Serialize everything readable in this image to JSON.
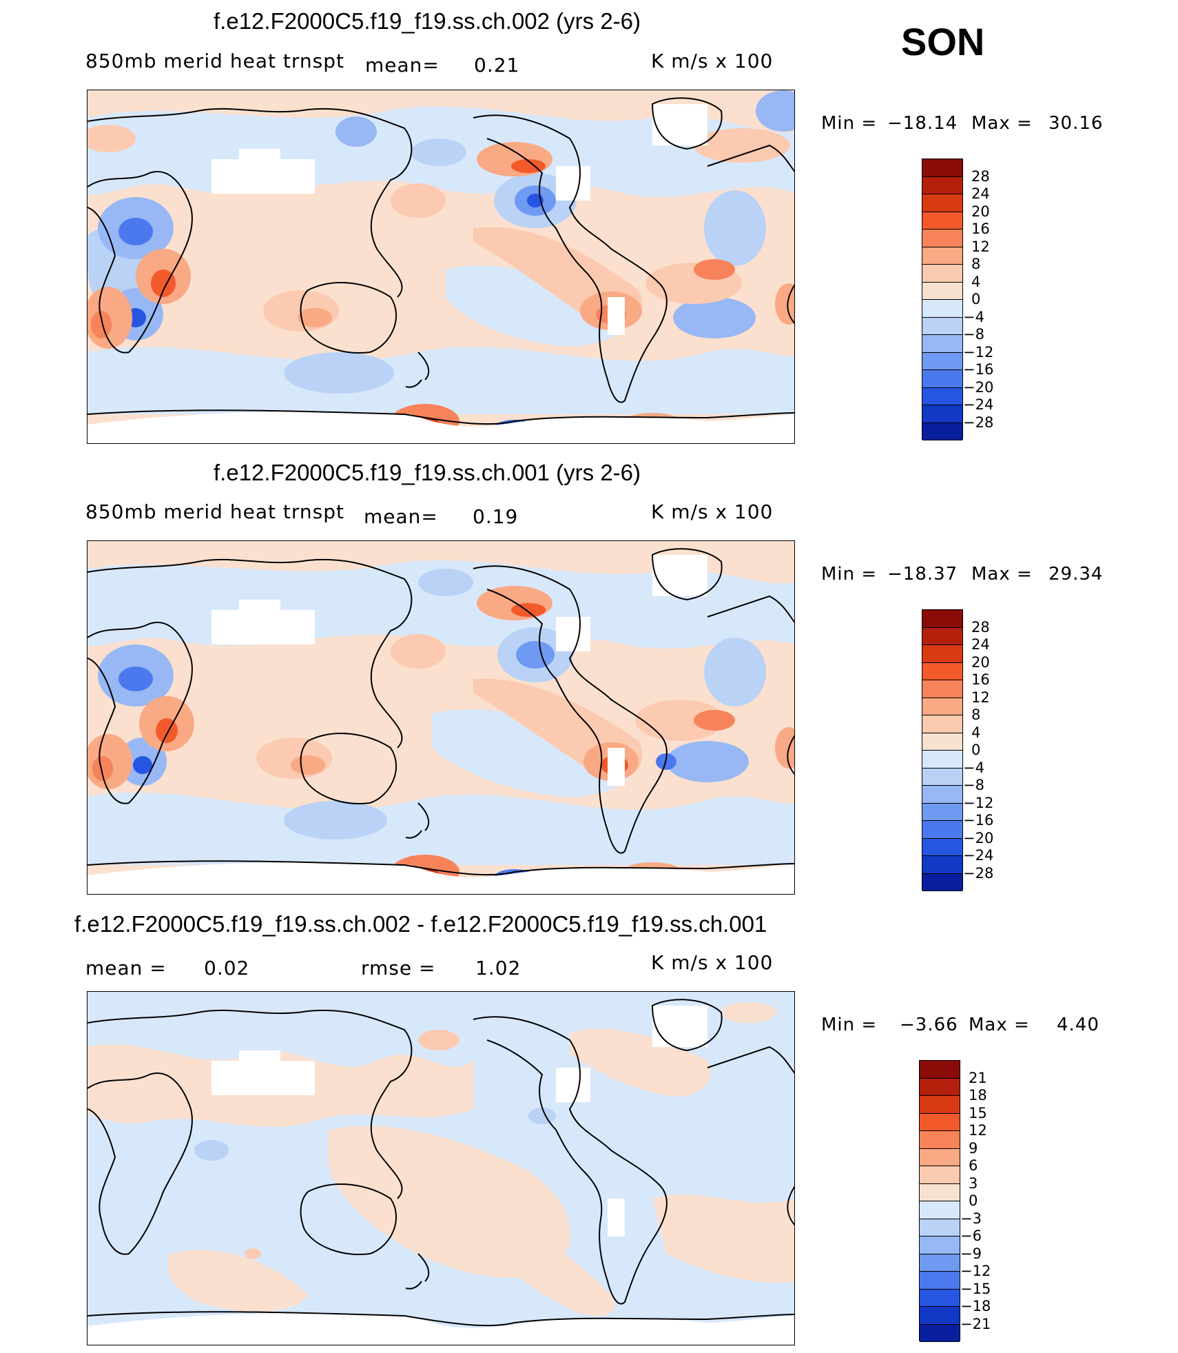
{
  "season": "SON",
  "colors": {
    "warm": [
      "#f8e2cf",
      "#fbcab0",
      "#f9a984",
      "#f7835a",
      "#f25a2c",
      "#d83a12",
      "#b4200b",
      "#8a0b08"
    ],
    "cool": [
      "#d8e8fb",
      "#b9d2f6",
      "#97b8f4",
      "#6f9af2",
      "#4b79ed",
      "#2655e1",
      "#1238c6",
      "#071f9d",
      "#000b6b"
    ]
  },
  "panels": [
    {
      "title": "f.e12.F2000C5.f19_f19.ss.ch.002 (yrs 2-6)",
      "subtitle": "850mb merid heat trnspt",
      "mean_label": "mean=",
      "mean_value": "0.21",
      "units": "K m/s x 100",
      "min_label": "Min =",
      "min_value": "−18.14",
      "max_label": "Max =",
      "max_value": "30.16",
      "colorbar_labels": [
        "28",
        "24",
        "20",
        "16",
        "12",
        "8",
        "4",
        "0",
        "−4",
        "−8",
        "−12",
        "−16",
        "−20",
        "−24",
        "−28"
      ]
    },
    {
      "title": "f.e12.F2000C5.f19_f19.ss.ch.001 (yrs 2-6)",
      "subtitle": "850mb merid heat trnspt",
      "mean_label": "mean=",
      "mean_value": "0.19",
      "units": "K m/s x 100",
      "min_label": "Min =",
      "min_value": "−18.37",
      "max_label": "Max =",
      "max_value": "29.34",
      "colorbar_labels": [
        "28",
        "24",
        "20",
        "16",
        "12",
        "8",
        "4",
        "0",
        "−4",
        "−8",
        "−12",
        "−16",
        "−20",
        "−24",
        "−28"
      ]
    },
    {
      "title": "f.e12.F2000C5.f19_f19.ss.ch.002 - f.e12.F2000C5.f19_f19.ss.ch.001",
      "mean_label": "mean =",
      "mean_value": "0.02",
      "rmse_label": "rmse =",
      "rmse_value": "1.02",
      "units": "K m/s x 100",
      "min_label": "Min =",
      "min_value": "−3.66",
      "max_label": "Max =",
      "max_value": "4.40",
      "colorbar_labels": [
        "21",
        "18",
        "15",
        "12",
        "9",
        "6",
        "3",
        "0",
        "−3",
        "−6",
        "−9",
        "−12",
        "−15",
        "−18",
        "−21"
      ]
    }
  ]
}
